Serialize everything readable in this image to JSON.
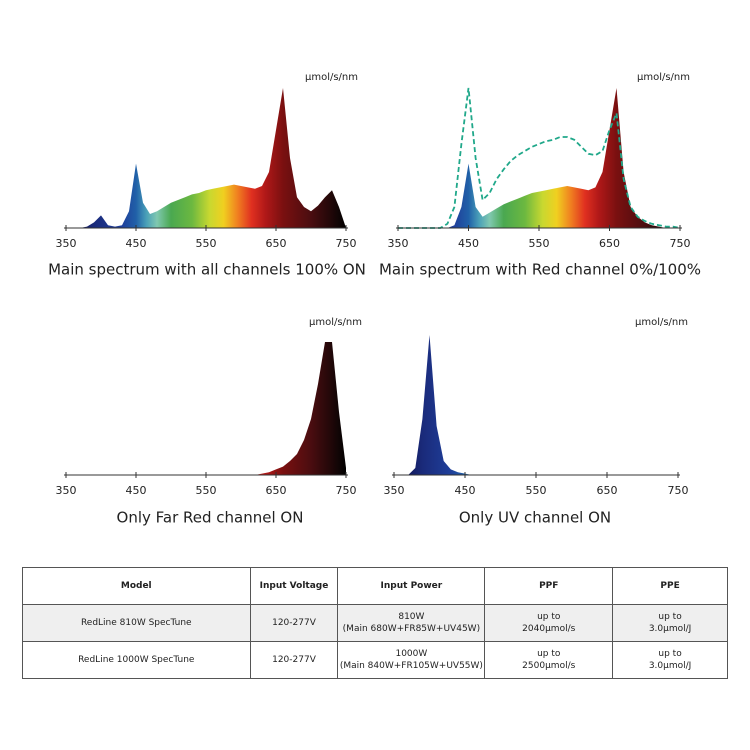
{
  "charts": [
    {
      "chart_data": {
        "type": "area",
        "title": "Main spectrum with all channels 100% ON",
        "y_label": "μmol/s/nm",
        "x": [
          350,
          360,
          370,
          380,
          390,
          400,
          410,
          420,
          430,
          440,
          450,
          460,
          470,
          480,
          490,
          500,
          510,
          520,
          530,
          540,
          550,
          560,
          570,
          580,
          590,
          600,
          610,
          620,
          630,
          640,
          650,
          660,
          670,
          680,
          690,
          700,
          710,
          720,
          730,
          740,
          750
        ],
        "series": [
          {
            "fill": "spectrum",
            "values": [
              0,
              0,
              0,
              1,
              4,
              9,
              2,
              1,
              2,
              12,
              46,
              18,
              10,
              12,
              15,
              18,
              20,
              22,
              24,
              25,
              27,
              28,
              29,
              30,
              31,
              30,
              29,
              28,
              30,
              40,
              70,
              100,
              50,
              22,
              15,
              12,
              16,
              22,
              27,
              15,
              0
            ]
          }
        ],
        "xlim": [
          350,
          750
        ],
        "ylim": [
          0,
          100
        ],
        "xticks": [
          350,
          450,
          550,
          650,
          750
        ]
      }
    },
    {
      "chart_data": {
        "type": "area",
        "title": "Main spectrum with Red channel 0%/100%",
        "y_label": "μmol/s/nm",
        "x": [
          350,
          360,
          370,
          380,
          390,
          400,
          410,
          420,
          430,
          440,
          450,
          460,
          470,
          480,
          490,
          500,
          510,
          520,
          530,
          540,
          550,
          560,
          570,
          580,
          590,
          600,
          610,
          620,
          630,
          640,
          650,
          660,
          670,
          680,
          690,
          700,
          710,
          720,
          730,
          740,
          750
        ],
        "series": [
          {
            "fill": "spectrum",
            "values": [
              0,
              0,
              0,
              0,
              0,
              0,
              0,
              0,
              2,
              15,
              46,
              15,
              8,
              11,
              14,
              17,
              19,
              21,
              23,
              25,
              26,
              27,
              28,
              29,
              30,
              29,
              28,
              27,
              29,
              40,
              70,
              100,
              40,
              15,
              8,
              4,
              2,
              1,
              0,
              0,
              0
            ]
          },
          {
            "color": "#20a88a",
            "dash": true,
            "values": [
              0,
              0,
              0,
              0,
              0,
              0,
              0,
              3,
              15,
              60,
              100,
              50,
              20,
              25,
              35,
              42,
              48,
              52,
              55,
              58,
              60,
              62,
              63,
              65,
              65,
              63,
              58,
              53,
              52,
              55,
              70,
              82,
              35,
              15,
              8,
              5,
              3,
              2,
              1,
              1,
              0
            ]
          }
        ],
        "xlim": [
          350,
          750
        ],
        "ylim": [
          0,
          100
        ],
        "xticks": [
          350,
          450,
          550,
          650,
          750
        ]
      }
    },
    {
      "chart_data": {
        "type": "area",
        "title": "Only Far Red channel ON",
        "y_label": "μmol/s/nm",
        "x": [
          350,
          360,
          370,
          380,
          390,
          400,
          410,
          420,
          430,
          440,
          450,
          460,
          470,
          480,
          490,
          500,
          510,
          520,
          530,
          540,
          550,
          560,
          570,
          580,
          590,
          600,
          610,
          620,
          630,
          640,
          650,
          660,
          670,
          680,
          690,
          700,
          710,
          720,
          730,
          740,
          750
        ],
        "series": [
          {
            "fill": "spectrum",
            "values": [
              0,
              0,
              0,
              0,
              0,
              0,
              0,
              0,
              0,
              0,
              0,
              0,
              0,
              0,
              0,
              0,
              0,
              0,
              0,
              0,
              0,
              0,
              0,
              0,
              0,
              0,
              0,
              0,
              1,
              2,
              4,
              6,
              10,
              15,
              25,
              40,
              65,
              95,
              95,
              45,
              5
            ]
          }
        ],
        "xlim": [
          350,
          750
        ],
        "ylim": [
          0,
          100
        ],
        "xticks": [
          350,
          450,
          550,
          650,
          750
        ]
      }
    },
    {
      "chart_data": {
        "type": "area",
        "title": "Only UV channel ON",
        "y_label": "μmol/s/nm",
        "x": [
          350,
          360,
          370,
          380,
          390,
          400,
          410,
          420,
          430,
          440,
          450,
          460,
          470,
          480,
          490,
          500,
          510,
          520,
          530,
          540,
          550,
          560,
          570,
          580,
          590,
          600,
          610,
          620,
          630,
          640,
          650,
          660,
          670,
          680,
          690,
          700,
          710,
          720,
          730,
          740,
          750
        ],
        "series": [
          {
            "fill": "spectrum",
            "values": [
              0,
              0,
              0,
              5,
              40,
              100,
              35,
              10,
              4,
              2,
              1,
              0,
              0,
              0,
              0,
              0,
              0,
              0,
              0,
              0,
              0,
              0,
              0,
              0,
              0,
              0,
              0,
              0,
              0,
              0,
              0,
              0,
              0,
              0,
              0,
              0,
              0,
              0,
              0,
              0,
              0
            ]
          }
        ],
        "xlim": [
          350,
          750
        ],
        "ylim": [
          0,
          100
        ],
        "xticks": [
          350,
          450,
          550,
          650,
          750
        ]
      }
    }
  ],
  "table": {
    "header": [
      "Model",
      "Input Voltage",
      "Input Power",
      "PPF",
      "PPE"
    ],
    "rows": [
      [
        [
          "RedLine 810W SpecTune"
        ],
        [
          "120-277V"
        ],
        [
          "810W",
          "(Main 680W+FR85W+UV45W)"
        ],
        [
          "up to",
          "2040μmol/s"
        ],
        [
          "up to",
          "3.0μmol/J"
        ]
      ],
      [
        [
          "RedLine 1000W SpecTune"
        ],
        [
          "120-277V"
        ],
        [
          "1000W",
          "(Main 840W+FR105W+UV55W)"
        ],
        [
          "up to",
          "2500μmol/s"
        ],
        [
          "up to",
          "3.0μmol/J"
        ]
      ]
    ]
  }
}
